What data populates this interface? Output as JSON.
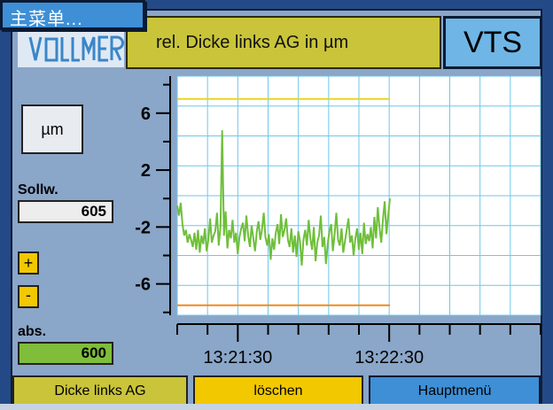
{
  "header": {
    "menu_label": "主菜单...",
    "title": "rel. Dicke links AG in µm",
    "badge": "VTS"
  },
  "logo": {
    "name": "vollmer-logo",
    "text": "VOLLMER"
  },
  "left_panel": {
    "unit_button": "µm",
    "sollw_label": "Sollw.",
    "sollw_value": "605",
    "plus_label": "+",
    "minus_label": "-",
    "abs_label": "abs.",
    "abs_value": "600"
  },
  "chart_data": {
    "type": "line",
    "y_ticks": [
      "6",
      "2",
      "-2",
      "-6"
    ],
    "x_tick_labels": [
      "13:21:30",
      "13:22:30"
    ],
    "upper_limit": 7,
    "lower_limit": -7.5,
    "ylim": [
      -8.2,
      8.6
    ],
    "series": [
      {
        "color": "#6fbf3a",
        "values": [
          -0.5,
          -1.2,
          -0.3,
          -1.8,
          -2.6,
          -2.2,
          -3.1,
          -2.5,
          -2.9,
          -3.4,
          -2.4,
          -3.6,
          -2.2,
          -3.8,
          -2.6,
          -3.2,
          -2.1,
          -3.7,
          -2.9,
          -1.4,
          -3.1,
          -2.6,
          -2.3,
          -1.0,
          -3.3,
          -2.0,
          4.8,
          -2.6,
          -0.9,
          -3.5,
          -2.2,
          -2.8,
          -1.5,
          -3.1,
          -2.4,
          -3.9,
          -2.7,
          -2.1,
          -1.7,
          -3.0,
          -1.2,
          -2.6,
          -3.4,
          -1.9,
          -2.8,
          -3.7,
          -2.3,
          -1.6,
          -2.9,
          -2.2,
          -1.0,
          -2.7,
          -3.3,
          -2.5,
          -4.3,
          -2.8,
          -3.6,
          -2.4,
          -1.8,
          -3.2,
          -1.1,
          -2.7,
          -2.2,
          -1.4,
          -2.9,
          -3.4,
          -2.1,
          -3.8,
          -2.6,
          -4.1,
          -2.3,
          -3.0,
          -4.7,
          -2.9,
          -2.2,
          -3.3,
          -1.5,
          -2.8,
          -3.6,
          -2.0,
          -4.4,
          -3.1,
          -2.6,
          -1.2,
          -3.4,
          -2.7,
          -4.6,
          -3.2,
          -2.3,
          -1.8,
          -3.7,
          -2.5,
          -1.0,
          -2.9,
          -3.3,
          -2.1,
          -3.8,
          -3.0,
          -2.2,
          -1.4,
          -3.1,
          -2.6,
          -4.0,
          -2.8,
          -2.1,
          -3.6,
          -2.4,
          -3.9,
          -1.7,
          -3.2,
          -2.5,
          -3.0,
          -2.0,
          -3.5,
          -1.3,
          -2.8,
          -0.6,
          -2.1,
          -3.1,
          -1.4,
          -0.2,
          -2.5,
          -1.2,
          0.0
        ]
      }
    ]
  },
  "bottom_buttons": {
    "dicke": "Dicke links AG",
    "loeschen": "löschen",
    "haupt": "Hauptmenü"
  },
  "colors": {
    "upper_limit_line": "#e8d61c",
    "lower_limit_line": "#f08a1c",
    "grid": "#6fc7e8"
  }
}
